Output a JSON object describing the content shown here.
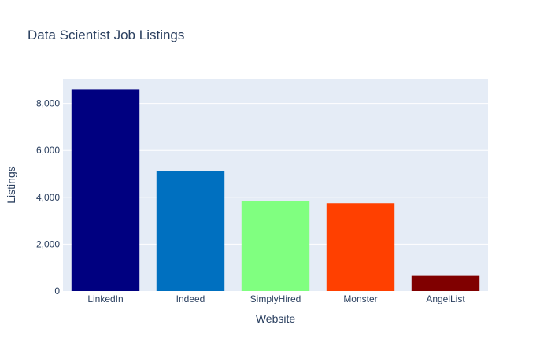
{
  "chart_data": {
    "type": "bar",
    "title": "Data Scientist Job Listings",
    "xlabel": "Website",
    "ylabel": "Listings",
    "categories": [
      "LinkedIn",
      "Indeed",
      "SimplyHired",
      "Monster",
      "AngelList"
    ],
    "values": [
      8610,
      5130,
      3830,
      3750,
      650
    ],
    "colors": [
      "#000080",
      "#0070c0",
      "#80ff80",
      "#ff4000",
      "#800000"
    ],
    "ylim": [
      0,
      9060
    ],
    "yticks": [
      0,
      2000,
      4000,
      6000,
      8000
    ],
    "ytick_labels": [
      "0",
      "2,000",
      "4,000",
      "6,000",
      "8,000"
    ],
    "plot_background": "#e5ecf6",
    "grid": true,
    "legend": "none"
  }
}
